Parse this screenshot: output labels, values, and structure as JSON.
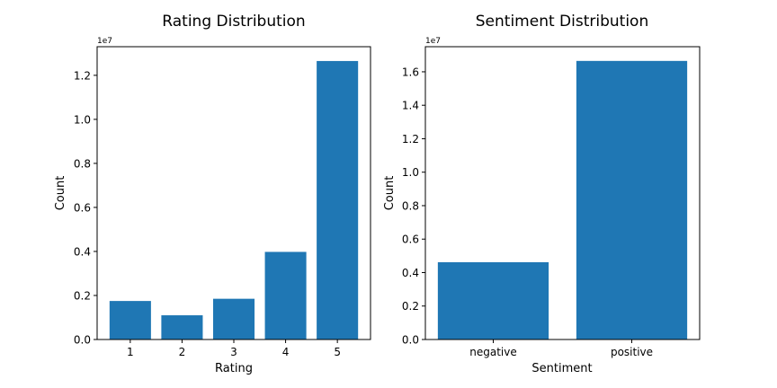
{
  "chart_data": [
    {
      "type": "bar",
      "title": "Rating Distribution",
      "xlabel": "Rating",
      "ylabel": "Count",
      "offset_text": "1e7",
      "categories": [
        "1",
        "2",
        "3",
        "4",
        "5"
      ],
      "values": [
        1.75,
        1.1,
        1.85,
        3.98,
        12.65
      ],
      "ylim": [
        0,
        13.3
      ],
      "yticks": [
        0.0,
        0.2,
        0.4,
        0.6,
        0.8,
        1.0,
        1.2
      ],
      "ytick_labels": [
        "0.0",
        "0.2",
        "0.4",
        "0.6",
        "0.8",
        "1.0",
        "1.2"
      ],
      "bar_color": "#1f77b4",
      "grid": false
    },
    {
      "type": "bar",
      "title": "Sentiment Distribution",
      "xlabel": "Sentiment",
      "ylabel": "Count",
      "offset_text": "1e7",
      "categories": [
        "negative",
        "positive"
      ],
      "values": [
        4.62,
        16.65
      ],
      "ylim": [
        0,
        17.5
      ],
      "yticks": [
        0.0,
        0.2,
        0.4,
        0.6,
        0.8,
        1.0,
        1.2,
        1.4,
        1.6
      ],
      "ytick_labels": [
        "0.0",
        "0.2",
        "0.4",
        "0.6",
        "0.8",
        "1.0",
        "1.2",
        "1.4",
        "1.6"
      ],
      "bar_color": "#1f77b4",
      "grid": false
    }
  ]
}
